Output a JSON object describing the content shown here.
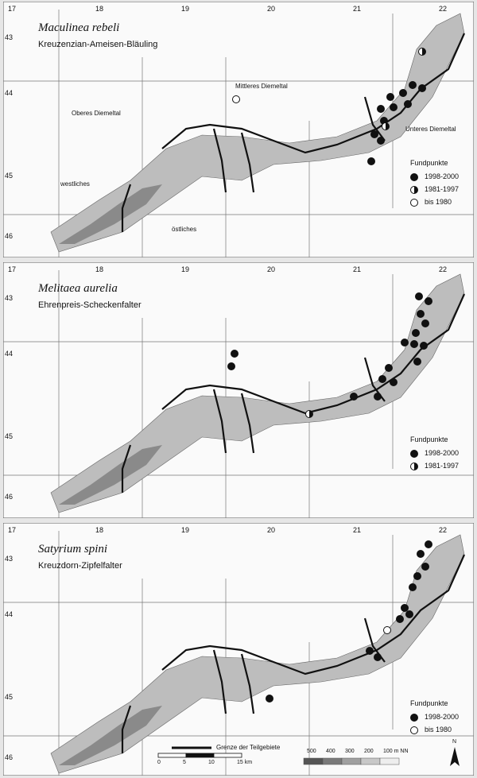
{
  "grid": {
    "columns": [
      "17",
      "18",
      "19",
      "20",
      "21",
      "22"
    ],
    "rows": [
      "43",
      "44",
      "45",
      "46"
    ]
  },
  "panels": [
    {
      "species": "Maculinea rebeli",
      "common": "Kreuzenzian-Ameisen-Bläuling",
      "regions": [
        "Oberes Diemeltal",
        "Mittleres Diemeltal",
        "Unteres Diemeltal",
        "westliches",
        "östliches"
      ],
      "legend": {
        "title": "Fundpunkte",
        "items": [
          "1998-2000",
          "1981-1997",
          "bis 1980"
        ]
      }
    },
    {
      "species": "Melitaea aurelia",
      "common": "Ehrenpreis-Scheckenfalter",
      "legend": {
        "title": "Fundpunkte",
        "items": [
          "1998-2000",
          "1981-1997"
        ]
      }
    },
    {
      "species": "Satyrium spini",
      "common": "Kreuzdorn-Zipfelfalter",
      "legend": {
        "title": "Fundpunkte",
        "items": [
          "1998-2000",
          "bis 1980"
        ]
      }
    }
  ],
  "scalebar": {
    "label": "Grenze der Teilgebiete",
    "ticks": [
      "0",
      "5",
      "10",
      "15 km"
    ],
    "elevation": [
      "500",
      "400",
      "300",
      "200",
      "100 m NN"
    ],
    "north": "N"
  }
}
